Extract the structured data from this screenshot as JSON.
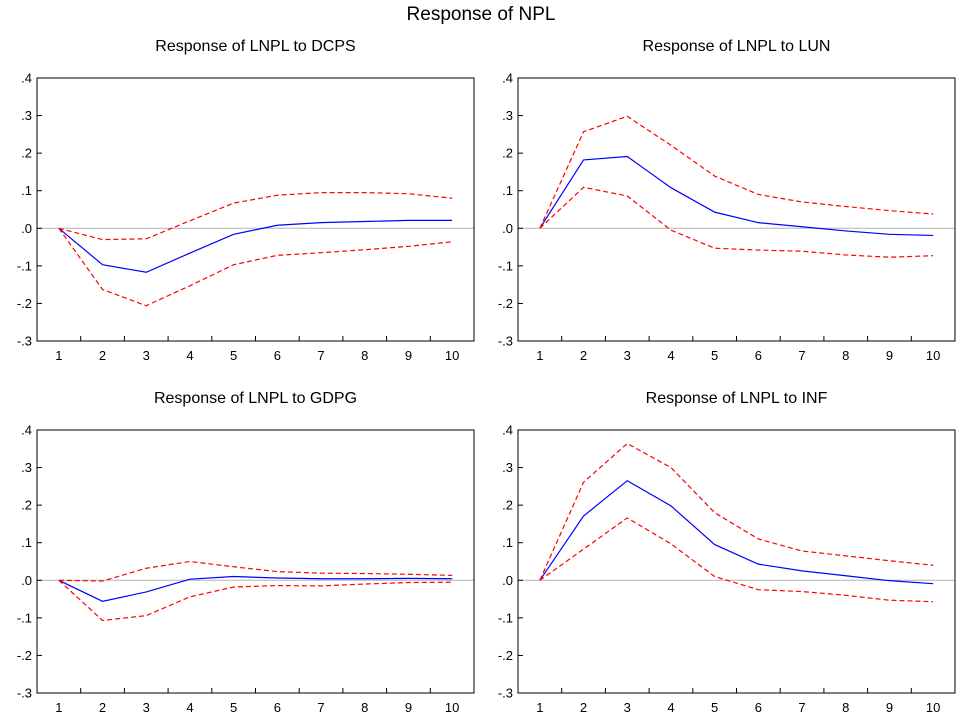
{
  "title": "Response of NPL",
  "chart_data": [
    {
      "type": "line",
      "title": "Response of LNPL to DCPS",
      "x": [
        1,
        2,
        3,
        4,
        5,
        6,
        7,
        8,
        9,
        10
      ],
      "ylim": [
        -0.3,
        0.4
      ],
      "yticks": [
        ".4",
        ".3",
        ".2",
        ".1",
        ".0",
        "-.1",
        "-.2",
        "-.3"
      ],
      "series": [
        {
          "role": "response",
          "color": "#0000ff",
          "dashed": false,
          "values": [
            0.0,
            -0.097,
            -0.117,
            -0.066,
            -0.016,
            0.008,
            0.015,
            0.018,
            0.021,
            0.021
          ]
        },
        {
          "role": "upper",
          "color": "#ff0000",
          "dashed": true,
          "values": [
            0.0,
            -0.03,
            -0.028,
            0.02,
            0.067,
            0.088,
            0.095,
            0.095,
            0.092,
            0.08
          ]
        },
        {
          "role": "lower",
          "color": "#ff0000",
          "dashed": true,
          "values": [
            0.0,
            -0.163,
            -0.206,
            -0.153,
            -0.097,
            -0.072,
            -0.065,
            -0.057,
            -0.048,
            -0.036
          ]
        }
      ]
    },
    {
      "type": "line",
      "title": "Response of LNPL to LUN",
      "x": [
        1,
        2,
        3,
        4,
        5,
        6,
        7,
        8,
        9,
        10
      ],
      "ylim": [
        -0.3,
        0.4
      ],
      "yticks": [
        ".4",
        ".3",
        ".2",
        ".1",
        ".0",
        "-.1",
        "-.2",
        "-.3"
      ],
      "series": [
        {
          "role": "response",
          "color": "#0000ff",
          "dashed": false,
          "values": [
            0.0,
            0.182,
            0.191,
            0.108,
            0.043,
            0.015,
            0.004,
            -0.007,
            -0.016,
            -0.019
          ]
        },
        {
          "role": "upper",
          "color": "#ff0000",
          "dashed": true,
          "values": [
            0.0,
            0.257,
            0.298,
            0.221,
            0.139,
            0.09,
            0.07,
            0.058,
            0.047,
            0.038
          ]
        },
        {
          "role": "lower",
          "color": "#ff0000",
          "dashed": true,
          "values": [
            0.0,
            0.109,
            0.086,
            -0.005,
            -0.053,
            -0.058,
            -0.061,
            -0.071,
            -0.077,
            -0.073
          ]
        }
      ]
    },
    {
      "type": "line",
      "title": "Response of LNPL to GDPG",
      "x": [
        1,
        2,
        3,
        4,
        5,
        6,
        7,
        8,
        9,
        10
      ],
      "ylim": [
        -0.3,
        0.4
      ],
      "yticks": [
        ".4",
        ".3",
        ".2",
        ".1",
        ".0",
        "-.1",
        "-.2",
        "-.3"
      ],
      "series": [
        {
          "role": "response",
          "color": "#0000ff",
          "dashed": false,
          "values": [
            0.0,
            -0.056,
            -0.031,
            0.003,
            0.01,
            0.006,
            0.004,
            0.004,
            0.005,
            0.004
          ]
        },
        {
          "role": "upper",
          "color": "#ff0000",
          "dashed": true,
          "values": [
            0.0,
            -0.002,
            0.032,
            0.05,
            0.036,
            0.023,
            0.019,
            0.018,
            0.016,
            0.013
          ]
        },
        {
          "role": "lower",
          "color": "#ff0000",
          "dashed": true,
          "values": [
            0.0,
            -0.107,
            -0.094,
            -0.044,
            -0.018,
            -0.014,
            -0.015,
            -0.01,
            -0.006,
            -0.005
          ]
        }
      ]
    },
    {
      "type": "line",
      "title": "Response of LNPL to INF",
      "x": [
        1,
        2,
        3,
        4,
        5,
        6,
        7,
        8,
        9,
        10
      ],
      "ylim": [
        -0.3,
        0.4
      ],
      "yticks": [
        ".4",
        ".3",
        ".2",
        ".1",
        ".0",
        "-.1",
        "-.2",
        "-.3"
      ],
      "series": [
        {
          "role": "response",
          "color": "#0000ff",
          "dashed": false,
          "values": [
            0.0,
            0.171,
            0.265,
            0.198,
            0.095,
            0.043,
            0.025,
            0.012,
            -0.001,
            -0.009
          ]
        },
        {
          "role": "upper",
          "color": "#ff0000",
          "dashed": true,
          "values": [
            0.0,
            0.261,
            0.364,
            0.3,
            0.18,
            0.11,
            0.078,
            0.065,
            0.052,
            0.04
          ]
        },
        {
          "role": "lower",
          "color": "#ff0000",
          "dashed": true,
          "values": [
            0.0,
            0.083,
            0.166,
            0.097,
            0.01,
            -0.025,
            -0.03,
            -0.04,
            -0.053,
            -0.057
          ]
        }
      ]
    }
  ]
}
